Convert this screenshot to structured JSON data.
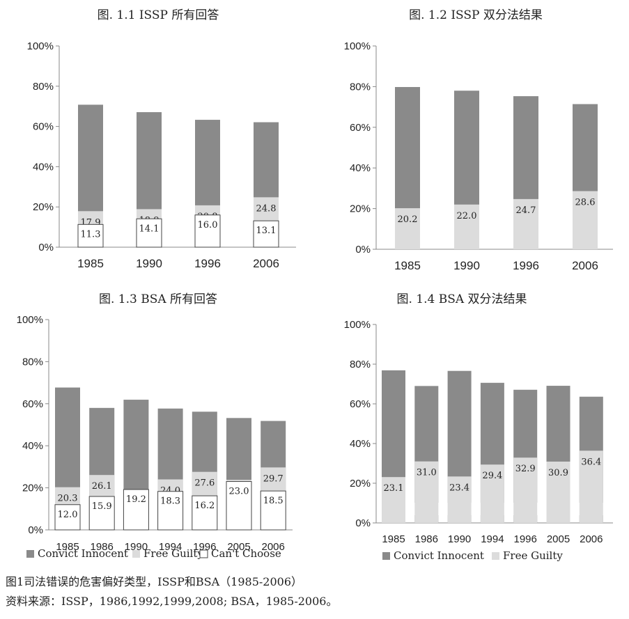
{
  "colors": {
    "convict_innocent": "#8a8a8a",
    "free_guilty": "#dcdcdc",
    "cant_choose": "#ffffff",
    "axis": "#888888"
  },
  "legend": {
    "convict_innocent": "Convict Innocent",
    "free_guilty": "Free Guilty",
    "cant_choose": "Can't Choose"
  },
  "caption": {
    "line1": "图1司法错误的危害偏好类型，ISSP和BSA（1985-2006）",
    "line2": "资料来源：ISSP，1986,1992,1999,2008; BSA，1985-2006。"
  },
  "chart_data": [
    {
      "type": "bar",
      "title": "图. 1.1 ISSP  所有回答",
      "stacked": true,
      "categories": [
        "1985",
        "1990",
        "1996",
        "2006"
      ],
      "yticks": [
        "0%",
        "20%",
        "40%",
        "60%",
        "80%",
        "100%"
      ],
      "ylim": [
        0,
        100
      ],
      "series": [
        {
          "key": "convict_innocent",
          "values": [
            70.8,
            67.1,
            63.3,
            62.1
          ]
        },
        {
          "key": "free_guilty",
          "values": [
            17.9,
            18.9,
            20.8,
            24.8
          ]
        },
        {
          "key": "cant_choose",
          "values": [
            11.3,
            14.1,
            16.0,
            13.1
          ]
        }
      ]
    },
    {
      "type": "bar",
      "title": "图. 1.2 ISSP  双分法结果",
      "stacked": true,
      "categories": [
        "1985",
        "1990",
        "1996",
        "2006"
      ],
      "yticks": [
        "0%",
        "20%",
        "40%",
        "60%",
        "80%",
        "100%"
      ],
      "ylim": [
        0,
        100
      ],
      "series": [
        {
          "key": "convict_innocent",
          "values": [
            79.8,
            78.0,
            75.3,
            71.4
          ]
        },
        {
          "key": "free_guilty",
          "values": [
            20.2,
            22.0,
            24.7,
            28.6
          ]
        }
      ]
    },
    {
      "type": "bar",
      "title": "图. 1.3 BSA  所有回答",
      "stacked": true,
      "categories": [
        "1985",
        "1986",
        "1990",
        "1994",
        "1996",
        "2005",
        "2006"
      ],
      "yticks": [
        "0%",
        "20%",
        "40%",
        "60%",
        "80%",
        "100%"
      ],
      "ylim": [
        0,
        100
      ],
      "series": [
        {
          "key": "convict_innocent",
          "values": [
            67.7,
            58.0,
            61.9,
            57.7,
            56.2,
            53.2,
            51.8
          ]
        },
        {
          "key": "free_guilty",
          "values": [
            20.3,
            26.1,
            18.9,
            24.0,
            27.6,
            23.8,
            29.7
          ]
        },
        {
          "key": "cant_choose",
          "values": [
            12.0,
            15.9,
            19.2,
            18.3,
            16.2,
            23.0,
            18.5
          ]
        }
      ],
      "legend": [
        "convict_innocent",
        "free_guilty",
        "cant_choose"
      ]
    },
    {
      "type": "bar",
      "title": "图. 1.4 BSA  双分法结果",
      "stacked": true,
      "categories": [
        "1985",
        "1986",
        "1990",
        "1994",
        "1996",
        "2005",
        "2006"
      ],
      "yticks": [
        "0%",
        "20%",
        "40%",
        "60%",
        "80%",
        "100%"
      ],
      "ylim": [
        0,
        100
      ],
      "series": [
        {
          "key": "convict_innocent",
          "values": [
            76.9,
            69.0,
            76.6,
            70.6,
            67.1,
            69.1,
            63.6
          ]
        },
        {
          "key": "free_guilty",
          "values": [
            23.1,
            31.0,
            23.4,
            29.4,
            32.9,
            30.9,
            36.4
          ]
        }
      ],
      "legend": [
        "convict_innocent",
        "free_guilty"
      ]
    }
  ]
}
